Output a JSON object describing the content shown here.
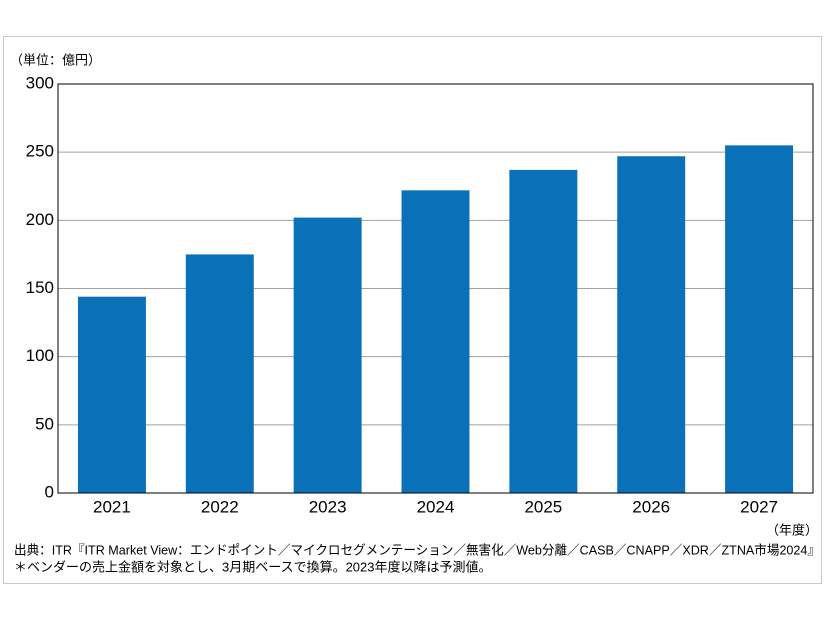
{
  "chart_data": {
    "type": "bar",
    "y_unit": "（単位：億円）",
    "x_unit": "（年度）",
    "categories": [
      "2021",
      "2022",
      "2023",
      "2024",
      "2025",
      "2026",
      "2027"
    ],
    "values": [
      144,
      175,
      202,
      222,
      237,
      247,
      255
    ],
    "color": "#0a70b8",
    "ylim": [
      0,
      300
    ],
    "yticks": [
      0,
      50,
      100,
      150,
      200,
      250,
      300
    ],
    "grid": true,
    "notes": [
      "出典：ITR『ITR Market View：エンドポイント／マイクロセグメンテーション／無害化／Web分離／CASB／CNAPP／XDR／ZTNA市場2024』",
      "＊ベンダーの売上金額を対象とし、3月期ベースで換算。2023年度以降は予測値。"
    ]
  }
}
